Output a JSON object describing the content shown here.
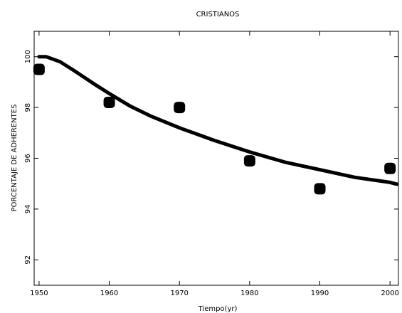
{
  "chart_data": {
    "type": "scatter",
    "title": "CRISTIANOS",
    "xlabel": "Tiempo(yr)",
    "ylabel": "PORCENTAJE DE ADHERENTES",
    "xlim": [
      1949.3,
      2001.2
    ],
    "ylim": [
      91.0,
      101.0
    ],
    "x_ticks": [
      1950,
      1960,
      1970,
      1980,
      1990,
      2000
    ],
    "y_ticks": [
      92,
      94,
      96,
      98,
      100
    ],
    "grid": false,
    "legend": "none",
    "series": [
      {
        "kind": "scatter",
        "x": [
          1950,
          1960,
          1970,
          1980,
          1990,
          2000
        ],
        "y": [
          99.5,
          98.2,
          98.0,
          95.9,
          94.8,
          95.6
        ]
      },
      {
        "kind": "line",
        "x": [
          1950,
          1951,
          1953,
          1955,
          1958,
          1960,
          1963,
          1966,
          1970,
          1975,
          1980,
          1985,
          1990,
          1995,
          2000,
          2001
        ],
        "y": [
          100.0,
          100.0,
          99.8,
          99.45,
          98.9,
          98.55,
          98.05,
          97.65,
          97.2,
          96.7,
          96.25,
          95.85,
          95.55,
          95.25,
          95.05,
          94.98
        ]
      }
    ],
    "colors": {
      "marks": "#000000",
      "axes": "#000000",
      "background": "#ffffff"
    }
  }
}
